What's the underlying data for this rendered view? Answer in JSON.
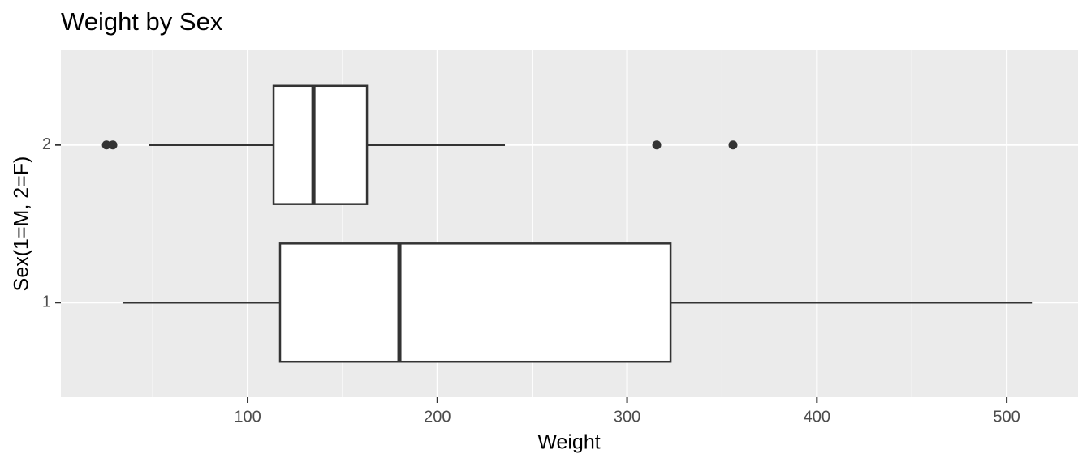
{
  "chart_data": {
    "type": "boxplot",
    "orientation": "horizontal",
    "title": "Weight by Sex",
    "x_label": "Weight",
    "y_label": "Sex(1=M, 2=F)",
    "categories": [
      "1",
      "2"
    ],
    "boxes": [
      {
        "min": 34.1,
        "q1": 117.1,
        "median": 180.0,
        "q3": 322.9,
        "max": 513.3,
        "outliers": []
      },
      {
        "min": 48.2,
        "q1": 113.7,
        "median": 134.7,
        "q3": 162.9,
        "max": 235.6,
        "outliers": [
          25.6,
          29.0,
          315.6,
          355.8
        ]
      }
    ],
    "xlim": [
      1.6,
      537.6
    ],
    "xticks": [
      100,
      200,
      300,
      400,
      500
    ],
    "xminor": [
      50,
      150,
      250,
      350,
      450
    ],
    "grid": true,
    "panel_color": "#ebebeb",
    "box_color": "#ffffff",
    "line_color": "#333333"
  }
}
